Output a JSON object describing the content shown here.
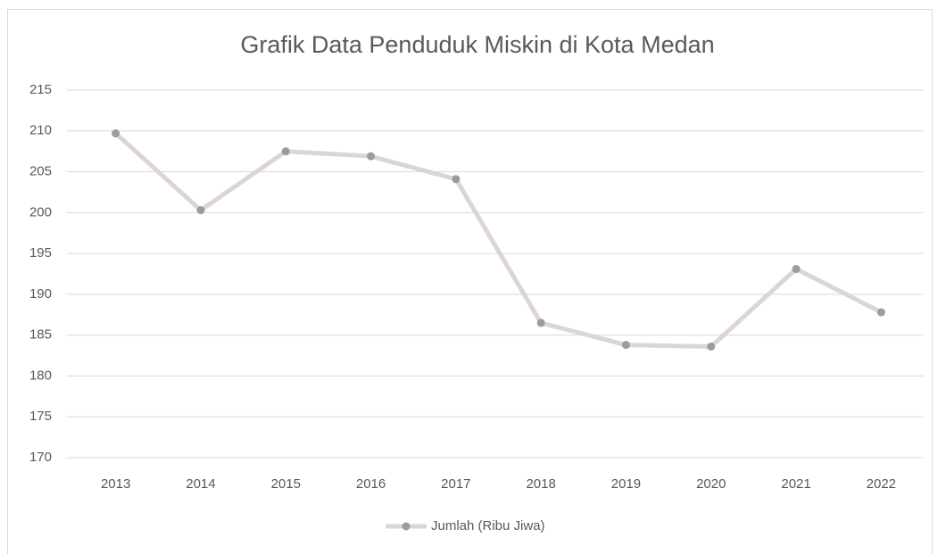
{
  "chart_data": {
    "type": "line",
    "title": "Grafik Data Penduduk Miskin di Kota Medan",
    "categories": [
      "2013",
      "2014",
      "2015",
      "2016",
      "2017",
      "2018",
      "2019",
      "2020",
      "2021",
      "2022"
    ],
    "series": [
      {
        "name": "Jumlah (Ribu Jiwa)",
        "color": "#ddd5d5",
        "marker_color": "#9c9c9c",
        "values": [
          209.7,
          200.3,
          207.5,
          206.9,
          204.1,
          186.5,
          183.8,
          183.6,
          193.1,
          187.8
        ]
      }
    ],
    "ylim": [
      170,
      215
    ],
    "yticks": [
      170,
      175,
      180,
      185,
      190,
      195,
      200,
      205,
      210,
      215
    ],
    "grid": true,
    "legend": "bottom"
  }
}
